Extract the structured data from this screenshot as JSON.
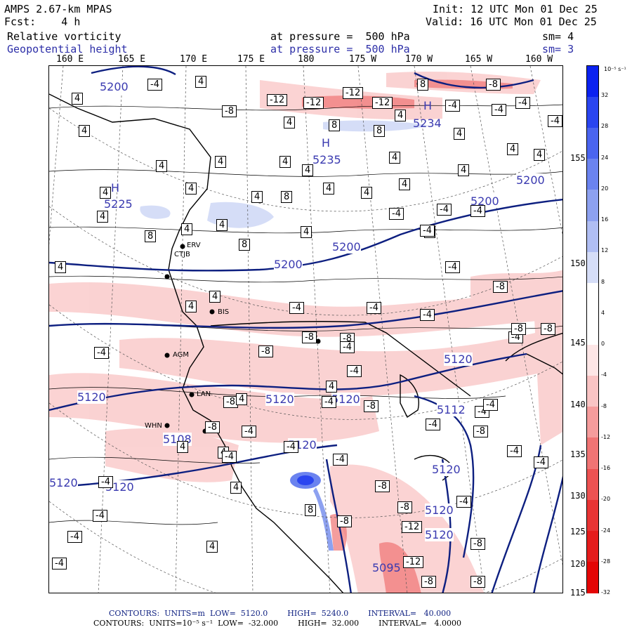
{
  "header": {
    "title": "AMPS 2.67-km MPAS",
    "fcst": "Fcst:    4 h",
    "init": "Init: 12 UTC Mon 01 Dec 25",
    "valid": "Valid: 16 UTC Mon 01 Dec 25",
    "field1_name": "Relative vorticity",
    "field1_level": "at pressure =  500 hPa",
    "field1_sm": "sm= 4",
    "field2_name": "Geopotential height",
    "field2_level": "at pressure =  500 hPa",
    "field2_sm": "sm= 3"
  },
  "longitudes": [
    "160 E",
    "165 E",
    "170 E",
    "175 E",
    "180",
    "175 W",
    "170 W",
    "165 W",
    "160 W"
  ],
  "latitudes": [
    "155",
    "150",
    "145",
    "140",
    "135",
    "130",
    "125",
    "120",
    "115"
  ],
  "colorbar": {
    "units": "10⁻⁵ s⁻¹",
    "ticks": [
      "32",
      "28",
      "24",
      "20",
      "16",
      "12",
      "8",
      "4",
      "0",
      "-4",
      "-8",
      "-12",
      "-16",
      "-20",
      "-24",
      "-28",
      "-32"
    ],
    "colors": [
      "#0b22f0",
      "#2a45f0",
      "#4a64ef",
      "#6b83ef",
      "#8da1f0",
      "#b0bef3",
      "#d5ddf7",
      "#ffffff",
      "#ffffff",
      "#fde6e6",
      "#f9c4c4",
      "#f59c9c",
      "#f07474",
      "#ec5252",
      "#e83434",
      "#e51c1c",
      "#e40606"
    ]
  },
  "height_contour_labels": [
    "5200",
    "5235",
    "5225",
    "5200",
    "5200",
    "5200",
    "5200",
    "5120",
    "5120",
    "5120",
    "5120",
    "5120",
    "5120",
    "5120",
    "5120",
    "5108",
    "5112",
    "5120",
    "5120",
    "5234",
    "5095"
  ],
  "highs": [
    "H",
    "H",
    "H"
  ],
  "stations": [
    "ERV",
    "CTJB",
    "BIS",
    "AGM",
    "LAN",
    "WHN"
  ],
  "vorticity_labels": {
    "minus4": "-4",
    "minus8": "-8",
    "minus12": "-12",
    "plus4": "4",
    "plus8": "8"
  },
  "footer": {
    "line1": "CONTOURS:  UNITS=m  LOW=  5120.0        HIGH=  5240.0        INTERVAL=   40.000",
    "line2": "CONTOURS:  UNITS=10⁻⁵ s⁻¹  LOW=  -32.000        HIGH=  32.000        INTERVAL=   4.0000"
  }
}
